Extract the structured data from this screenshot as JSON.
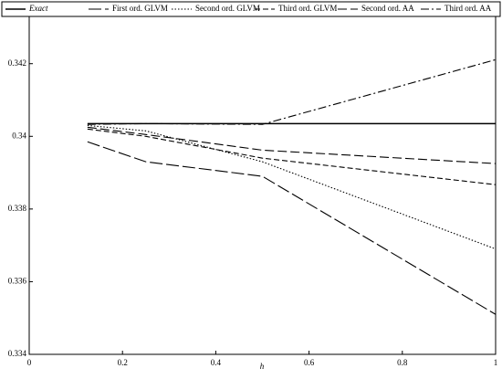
{
  "chart_data": {
    "type": "line",
    "x_label": "h",
    "x": [
      0.125,
      0.25,
      0.5,
      1
    ],
    "series": [
      {
        "name": "Exact",
        "color": "#000000",
        "dash": "none",
        "width": 1.6,
        "values": [
          0.34035,
          0.34035,
          0.34035,
          0.34035
        ]
      },
      {
        "name": "First ord. GLVM",
        "color": "#000000",
        "dash": "14 4",
        "width": 1.1,
        "values": [
          0.33985,
          0.3393,
          0.3389,
          0.3351
        ]
      },
      {
        "name": "Second ord. GLVM",
        "color": "#000000",
        "dash": "1.5 2",
        "width": 1.1,
        "values": [
          0.3403,
          0.34015,
          0.3393,
          0.3369
        ]
      },
      {
        "name": "Third ord. GLVM",
        "color": "#000000",
        "dash": "6 3",
        "width": 1.1,
        "values": [
          0.3402,
          0.34,
          0.3394,
          0.33867
        ]
      },
      {
        "name": "Second ord. AA",
        "color": "#000000",
        "dash": "10 4",
        "width": 1.1,
        "values": [
          0.34025,
          0.34005,
          0.33962,
          0.33925
        ]
      },
      {
        "name": "Third ord. AA",
        "color": "#000000",
        "dash": "9 3 2 3",
        "width": 1.1,
        "values": [
          0.34033,
          0.34035,
          0.34033,
          0.34211
        ]
      }
    ],
    "xlim": [
      0,
      1
    ],
    "xticks": [
      0,
      0.2,
      0.4,
      0.6,
      0.8,
      1
    ],
    "ylim": [
      0.334,
      0.3433
    ],
    "yticks": [
      0.334,
      0.336,
      0.338,
      0.34,
      0.342
    ]
  }
}
